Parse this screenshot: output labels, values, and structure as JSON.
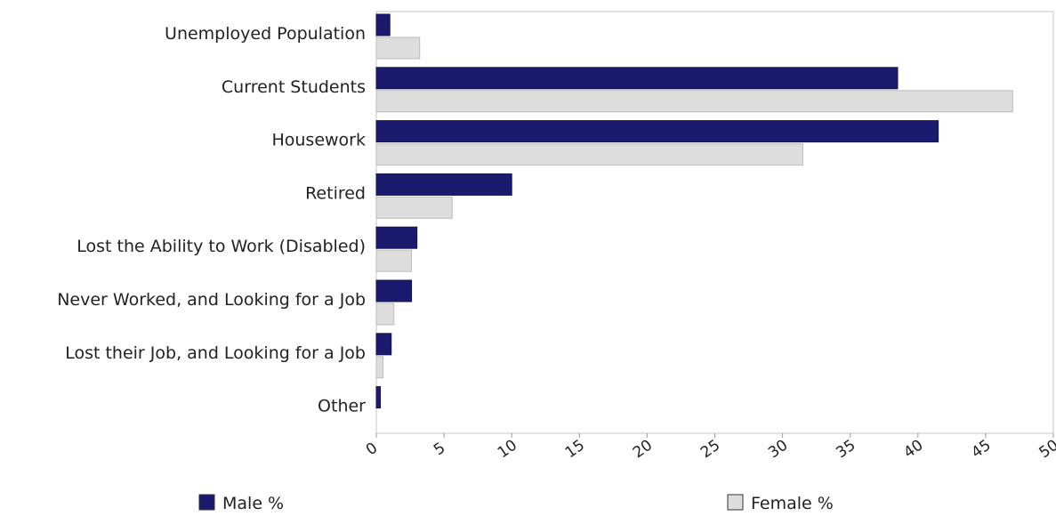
{
  "chart_data": {
    "type": "bar",
    "orientation": "horizontal",
    "categories": [
      "Unemployed Population",
      "Current Students",
      "Housework",
      "Retired",
      "Lost the Ability to Work (Disabled)",
      "Never Worked, and Looking for a Job",
      "Lost their Job, and Looking for a Job",
      "Other"
    ],
    "series": [
      {
        "name": "Male %",
        "color": "#1a1a6e",
        "values": [
          1.0,
          38.5,
          41.5,
          10.0,
          3.0,
          2.6,
          1.1,
          0.3
        ]
      },
      {
        "name": "Female %",
        "color": "#dddddd",
        "values": [
          3.2,
          47.0,
          31.5,
          5.6,
          2.6,
          1.3,
          0.5,
          0.0
        ]
      }
    ],
    "xlim": [
      0,
      50
    ],
    "xticks": [
      0,
      5,
      10,
      15,
      20,
      25,
      30,
      35,
      40,
      45,
      50
    ],
    "grid": false,
    "legend_position": "bottom"
  }
}
